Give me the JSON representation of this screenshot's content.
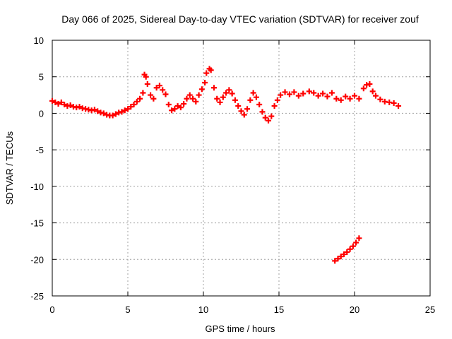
{
  "chart_data": {
    "type": "scatter",
    "title": "Day 066 of 2025, Sidereal Day-to-day VTEC variation (SDTVAR) for receiver zouf",
    "xlabel": "GPS time / hours",
    "ylabel": "SDTVAR / TECUs",
    "xlim": [
      0,
      25
    ],
    "ylim": [
      -25,
      10
    ],
    "xticks": [
      0,
      5,
      10,
      15,
      20,
      25
    ],
    "yticks": [
      -25,
      -20,
      -15,
      -10,
      -5,
      0,
      5,
      10
    ],
    "grid": true,
    "marker_color": "#ff0000",
    "series": [
      {
        "name": "SDTVAR",
        "points": [
          [
            0.0,
            1.7
          ],
          [
            0.2,
            1.5
          ],
          [
            0.4,
            1.3
          ],
          [
            0.6,
            1.5
          ],
          [
            0.8,
            1.2
          ],
          [
            1.0,
            1.0
          ],
          [
            1.2,
            1.1
          ],
          [
            1.4,
            0.9
          ],
          [
            1.6,
            0.8
          ],
          [
            1.8,
            0.9
          ],
          [
            2.0,
            0.7
          ],
          [
            2.2,
            0.6
          ],
          [
            2.4,
            0.5
          ],
          [
            2.6,
            0.4
          ],
          [
            2.8,
            0.5
          ],
          [
            3.0,
            0.3
          ],
          [
            3.2,
            0.1
          ],
          [
            3.4,
            0.0
          ],
          [
            3.6,
            -0.2
          ],
          [
            3.8,
            -0.3
          ],
          [
            4.0,
            -0.3
          ],
          [
            4.2,
            -0.1
          ],
          [
            4.4,
            0.1
          ],
          [
            4.6,
            0.2
          ],
          [
            4.8,
            0.4
          ],
          [
            5.0,
            0.6
          ],
          [
            5.2,
            0.9
          ],
          [
            5.4,
            1.2
          ],
          [
            5.6,
            1.6
          ],
          [
            5.8,
            2.0
          ],
          [
            6.0,
            2.8
          ],
          [
            6.1,
            5.3
          ],
          [
            6.2,
            5.0
          ],
          [
            6.3,
            4.0
          ],
          [
            6.5,
            2.5
          ],
          [
            6.7,
            2.0
          ],
          [
            6.9,
            3.5
          ],
          [
            7.1,
            3.8
          ],
          [
            7.3,
            3.2
          ],
          [
            7.5,
            2.6
          ],
          [
            7.7,
            1.2
          ],
          [
            7.9,
            0.4
          ],
          [
            8.1,
            0.6
          ],
          [
            8.3,
            1.0
          ],
          [
            8.5,
            0.8
          ],
          [
            8.7,
            1.3
          ],
          [
            8.9,
            2.0
          ],
          [
            9.1,
            2.5
          ],
          [
            9.3,
            2.0
          ],
          [
            9.5,
            1.6
          ],
          [
            9.7,
            2.5
          ],
          [
            9.9,
            3.3
          ],
          [
            10.1,
            4.2
          ],
          [
            10.2,
            5.5
          ],
          [
            10.4,
            6.1
          ],
          [
            10.5,
            5.9
          ],
          [
            10.7,
            3.5
          ],
          [
            10.9,
            2.0
          ],
          [
            11.1,
            1.5
          ],
          [
            11.3,
            2.2
          ],
          [
            11.5,
            2.8
          ],
          [
            11.7,
            3.2
          ],
          [
            11.9,
            2.7
          ],
          [
            12.1,
            1.8
          ],
          [
            12.3,
            1.0
          ],
          [
            12.5,
            0.3
          ],
          [
            12.7,
            -0.2
          ],
          [
            12.9,
            0.6
          ],
          [
            13.1,
            1.8
          ],
          [
            13.3,
            2.8
          ],
          [
            13.5,
            2.2
          ],
          [
            13.7,
            1.2
          ],
          [
            13.9,
            0.2
          ],
          [
            14.1,
            -0.6
          ],
          [
            14.3,
            -1.0
          ],
          [
            14.5,
            -0.4
          ],
          [
            14.7,
            1.0
          ],
          [
            14.9,
            1.8
          ],
          [
            15.1,
            2.5
          ],
          [
            15.4,
            2.9
          ],
          [
            15.7,
            2.6
          ],
          [
            16.0,
            2.9
          ],
          [
            16.3,
            2.4
          ],
          [
            16.6,
            2.7
          ],
          [
            17.0,
            3.0
          ],
          [
            17.3,
            2.8
          ],
          [
            17.6,
            2.4
          ],
          [
            17.9,
            2.7
          ],
          [
            18.2,
            2.3
          ],
          [
            18.5,
            2.8
          ],
          [
            18.8,
            2.0
          ],
          [
            19.1,
            1.8
          ],
          [
            19.4,
            2.3
          ],
          [
            19.7,
            2.0
          ],
          [
            20.0,
            2.4
          ],
          [
            20.3,
            2.0
          ],
          [
            20.6,
            3.4
          ],
          [
            20.8,
            3.9
          ],
          [
            21.0,
            4.0
          ],
          [
            21.2,
            3.0
          ],
          [
            21.4,
            2.4
          ],
          [
            21.7,
            1.9
          ],
          [
            22.0,
            1.6
          ],
          [
            22.3,
            1.5
          ],
          [
            22.6,
            1.4
          ],
          [
            22.9,
            1.0
          ],
          [
            18.7,
            -20.2
          ],
          [
            18.9,
            -19.9
          ],
          [
            19.1,
            -19.6
          ],
          [
            19.3,
            -19.3
          ],
          [
            19.5,
            -19.0
          ],
          [
            19.7,
            -18.6
          ],
          [
            19.9,
            -18.2
          ],
          [
            20.1,
            -17.7
          ],
          [
            20.3,
            -17.1
          ]
        ]
      }
    ]
  }
}
